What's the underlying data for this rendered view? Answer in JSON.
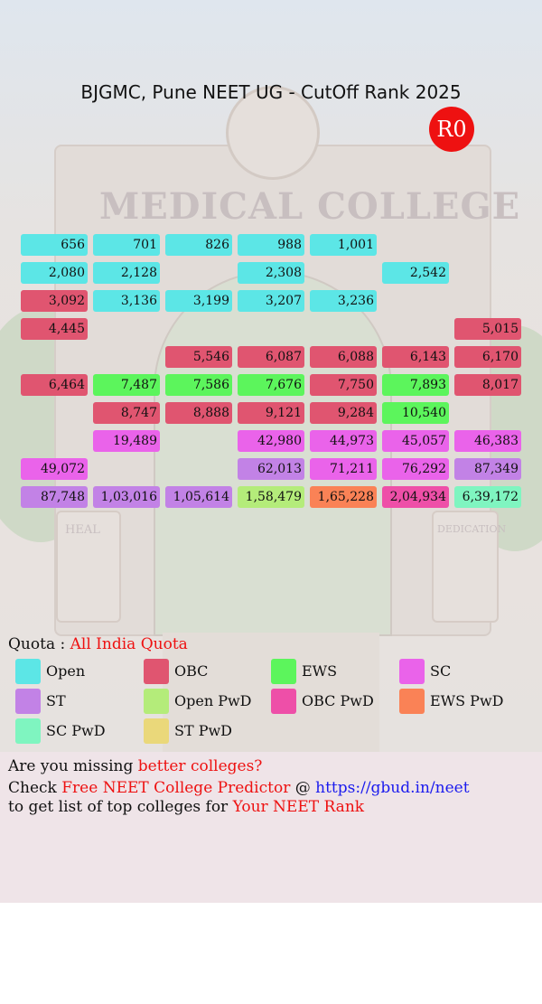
{
  "title": "BJGMC, Pune NEET UG - CutOff Rank 2025",
  "round_badge": "R0",
  "background": {
    "sign": "MEDICAL COLLEGE",
    "panel_left": "HEAL",
    "panel_right": "DEDICATION"
  },
  "colors": {
    "open": "#5ce6e6",
    "obc": "#e05570",
    "ews": "#5cf55c",
    "sc": "#ea63ea",
    "st": "#c282e6",
    "open_pwd": "#b4ec7a",
    "obc_pwd": "#ee4fa8",
    "ews_pwd": "#fa8256",
    "sc_pwd": "#7ff5c0",
    "st_pwd": "#ead87a"
  },
  "grid": [
    [
      {
        "v": "656",
        "c": "open"
      },
      {
        "v": "701",
        "c": "open"
      },
      {
        "v": "826",
        "c": "open"
      },
      {
        "v": "988",
        "c": "open"
      },
      {
        "v": "1,001",
        "c": "open"
      },
      null,
      null
    ],
    [
      {
        "v": "2,080",
        "c": "open"
      },
      {
        "v": "2,128",
        "c": "open"
      },
      null,
      {
        "v": "2,308",
        "c": "open"
      },
      null,
      {
        "v": "2,542",
        "c": "open"
      },
      null
    ],
    [
      {
        "v": "3,092",
        "c": "obc"
      },
      {
        "v": "3,136",
        "c": "open"
      },
      {
        "v": "3,199",
        "c": "open"
      },
      {
        "v": "3,207",
        "c": "open"
      },
      {
        "v": "3,236",
        "c": "open"
      },
      null,
      null
    ],
    [
      {
        "v": "4,445",
        "c": "obc"
      },
      null,
      null,
      null,
      null,
      null,
      {
        "v": "5,015",
        "c": "obc"
      }
    ],
    [
      null,
      null,
      {
        "v": "5,546",
        "c": "obc"
      },
      {
        "v": "6,087",
        "c": "obc"
      },
      {
        "v": "6,088",
        "c": "obc"
      },
      {
        "v": "6,143",
        "c": "obc"
      },
      {
        "v": "6,170",
        "c": "obc"
      }
    ],
    [
      {
        "v": "6,464",
        "c": "obc"
      },
      {
        "v": "7,487",
        "c": "ews"
      },
      {
        "v": "7,586",
        "c": "ews"
      },
      {
        "v": "7,676",
        "c": "ews"
      },
      {
        "v": "7,750",
        "c": "obc"
      },
      {
        "v": "7,893",
        "c": "ews"
      },
      {
        "v": "8,017",
        "c": "obc"
      }
    ],
    [
      null,
      {
        "v": "8,747",
        "c": "obc"
      },
      {
        "v": "8,888",
        "c": "obc"
      },
      {
        "v": "9,121",
        "c": "obc"
      },
      {
        "v": "9,284",
        "c": "obc"
      },
      {
        "v": "10,540",
        "c": "ews"
      },
      null
    ],
    [
      null,
      {
        "v": "19,489",
        "c": "sc"
      },
      null,
      {
        "v": "42,980",
        "c": "sc"
      },
      {
        "v": "44,973",
        "c": "sc"
      },
      {
        "v": "45,057",
        "c": "sc"
      },
      {
        "v": "46,383",
        "c": "sc"
      }
    ],
    [
      {
        "v": "49,072",
        "c": "sc"
      },
      null,
      null,
      {
        "v": "62,013",
        "c": "st"
      },
      {
        "v": "71,211",
        "c": "sc"
      },
      {
        "v": "76,292",
        "c": "sc"
      },
      {
        "v": "87,349",
        "c": "st"
      }
    ],
    [
      {
        "v": "87,748",
        "c": "st"
      },
      {
        "v": "1,03,016",
        "c": "st"
      },
      {
        "v": "1,05,614",
        "c": "st"
      },
      {
        "v": "1,58,479",
        "c": "open_pwd"
      },
      {
        "v": "1,65,228",
        "c": "ews_pwd"
      },
      {
        "v": "2,04,934",
        "c": "obc_pwd"
      },
      {
        "v": "6,39,172",
        "c": "sc_pwd"
      }
    ]
  ],
  "quota": {
    "label": "Quota : ",
    "value": "All India Quota"
  },
  "legend": [
    {
      "label": "Open",
      "c": "open"
    },
    {
      "label": "OBC",
      "c": "obc"
    },
    {
      "label": "EWS",
      "c": "ews"
    },
    {
      "label": "SC",
      "c": "sc"
    },
    {
      "label": "ST",
      "c": "st"
    },
    {
      "label": "Open PwD",
      "c": "open_pwd"
    },
    {
      "label": "OBC PwD",
      "c": "obc_pwd"
    },
    {
      "label": "EWS PwD",
      "c": "ews_pwd"
    },
    {
      "label": "SC PwD",
      "c": "sc_pwd"
    },
    {
      "label": "ST PwD",
      "c": "st_pwd"
    }
  ],
  "promo": {
    "line1_a": "Are you missing ",
    "line1_b": "better colleges?",
    "line2_a": "Check ",
    "line2_b": "Free NEET College Predictor",
    "line2_c": " @ ",
    "line2_d": "https://gbud.in/neet",
    "line3_a": "to get list of top colleges for ",
    "line3_b": "Your NEET Rank"
  }
}
